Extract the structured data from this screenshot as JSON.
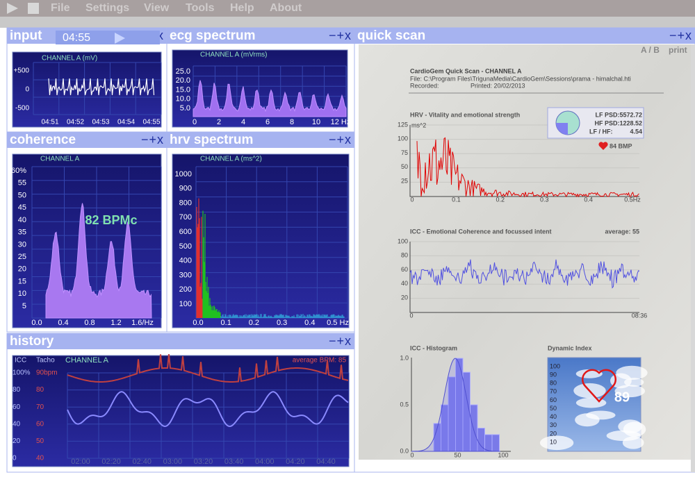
{
  "menu": [
    "File",
    "Settings",
    "View",
    "Tools",
    "Help",
    "About"
  ],
  "controls": "−+x",
  "input": {
    "title": "input",
    "timer": "04:55",
    "channel": "CHANNEL A (mV)",
    "yticks": [
      "+500",
      "0",
      "-500"
    ],
    "xticks": [
      "04:51",
      "04:52",
      "04:53",
      "04:54",
      "04:55"
    ]
  },
  "ecg": {
    "title": "ecg spectrum",
    "channel": "CHANNEL A (mVrms)",
    "yticks": [
      "25.0",
      "20.0",
      "15.0",
      "10.0",
      "5.0"
    ],
    "xticks": [
      "0",
      "2",
      "4",
      "6",
      "8",
      "10",
      "12 Hz"
    ]
  },
  "coherence": {
    "title": "coherence",
    "channel": "CHANNEL A",
    "yticks": [
      "60%",
      "55",
      "50",
      "45",
      "40",
      "35",
      "30",
      "25",
      "20",
      "15",
      "10",
      "5"
    ],
    "xticks": [
      "0.0",
      "0.4",
      "0.8",
      "1.2",
      "1.6/Hz"
    ],
    "bpm": "82 BPMc"
  },
  "hrv": {
    "title": "hrv spectrum",
    "channel": "CHANNEL A (ms^2)",
    "yticks": [
      "1000",
      "900",
      "800",
      "700",
      "600",
      "500",
      "400",
      "300",
      "200",
      "100"
    ],
    "xticks": [
      "0.0",
      "0.1",
      "0.2",
      "0.3",
      "0.4",
      "0.5 Hz"
    ]
  },
  "history": {
    "title": "history",
    "icc": "ICC",
    "tacho": "Tacho",
    "channel": "CHANNEL A",
    "average": "average BPM: 85",
    "icc_ticks": [
      "100%",
      "80",
      "60",
      "40",
      "20",
      "0"
    ],
    "tacho_ticks": [
      "90bpm",
      "80",
      "70",
      "60",
      "50",
      "40"
    ],
    "xticks": [
      "02:00",
      "02:20",
      "02:40",
      "03:00",
      "03:20",
      "03:40",
      "04:00",
      "04:20",
      "04:40"
    ]
  },
  "quick": {
    "title": "quick scan",
    "ab": "A / B",
    "print": "print",
    "report_title": "CardioGem Quick Scan - CHANNEL A",
    "file": "File: C:\\Program Files\\TrigunaMedia\\CardioGem\\Sessions\\prama - himalchal.hti",
    "recorded": "Recorded:",
    "printed": "Printed: 20/02/2013",
    "hrv": {
      "title": "HRV - Vitality and emotional strength",
      "unit": "ms^2",
      "yticks": [
        "125",
        "100",
        "75",
        "50",
        "25"
      ],
      "xticks": [
        "0",
        "0.1",
        "0.2",
        "0.3",
        "0.4",
        "0.5Hz"
      ],
      "lf": "LF PSD:5572.72",
      "hf": "HF PSD:1228.52",
      "ratio_label": "LF / HF:",
      "ratio": "4.54",
      "heart": "84 BMP"
    },
    "icc": {
      "title": "ICC - Emotional Coherence and focussed intent",
      "average": "average: 55",
      "yticks": [
        "100",
        "80",
        "60",
        "40",
        "20"
      ],
      "xticks": [
        "0",
        "08:36"
      ]
    },
    "histogram": {
      "title": "ICC - Histogram",
      "yticks": [
        "1.0",
        "0.5",
        "0.0"
      ],
      "xticks": [
        "0",
        "50",
        "100"
      ]
    },
    "dynamic": {
      "title": "Dynamic Index",
      "yticks": [
        "100",
        "90",
        "80",
        "70",
        "60",
        "50",
        "40",
        "30",
        "20",
        "10"
      ],
      "value": "89"
    }
  }
}
